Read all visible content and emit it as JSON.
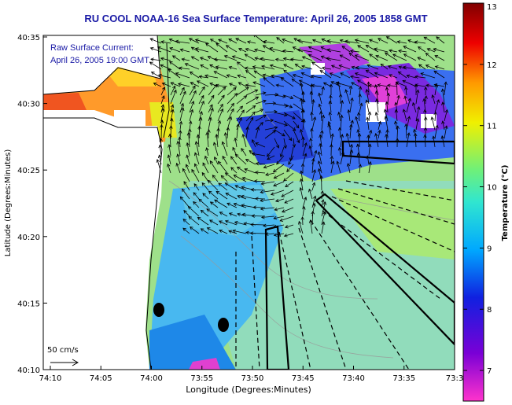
{
  "title": "RU COOL  NOAA-16  Sea Surface Temperature:  April 26, 2005 1858 GMT",
  "annotation": {
    "line1": "Raw Surface Current:",
    "line2": "April 26, 2005 19:00 GMT"
  },
  "scale_label": "50 cm/s",
  "axes": {
    "xlabel": "Longitude (Degrees:Minutes)",
    "ylabel": "Latitude (Degrees:Minutes)",
    "xticks": [
      "74:10",
      "74:05",
      "74:00",
      "73:55",
      "73:50",
      "73:45",
      "73:40",
      "73:35",
      "73:3"
    ],
    "yticks": [
      "40:35",
      "40:30",
      "40:25",
      "40:20",
      "40:15",
      "40:10"
    ]
  },
  "colorbar": {
    "label": "Temperature (°C)",
    "ticks": [
      "13",
      "12",
      "11",
      "10",
      "9",
      "8",
      "7"
    ],
    "min": 6.5,
    "max": 13
  },
  "colors": {
    "title": "#1a1aa6",
    "land": "#ffffff",
    "coast": "#000000"
  }
}
